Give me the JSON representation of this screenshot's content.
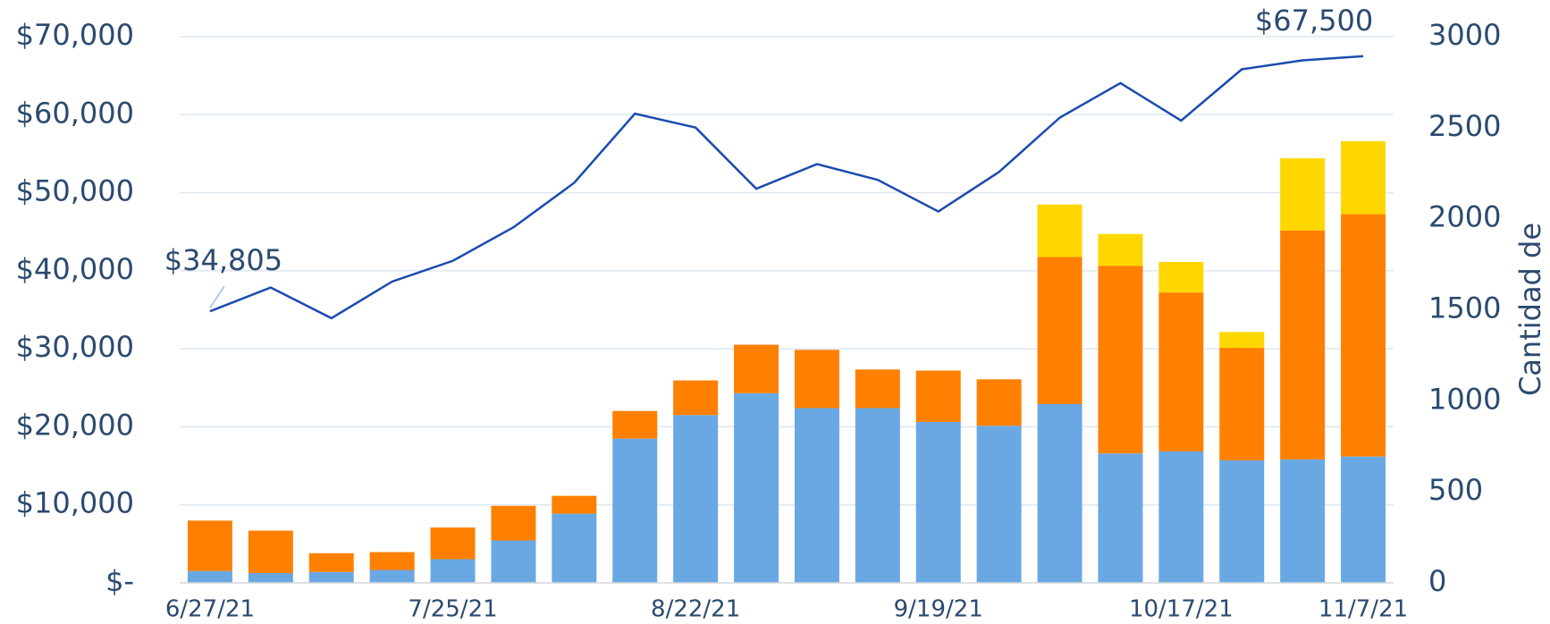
{
  "chart_data": {
    "type": "bar",
    "categories": [
      "6/27/21",
      null,
      null,
      null,
      "7/25/21",
      null,
      null,
      null,
      "8/22/21",
      null,
      null,
      null,
      "9/19/21",
      null,
      null,
      null,
      "10/17/21",
      null,
      null,
      "11/7/21"
    ],
    "series": [
      {
        "color": "#6aa8e3",
        "axis": "y2",
        "values": [
          65,
          54,
          60,
          71,
          130,
          233,
          380,
          792,
          922,
          1042,
          960,
          960,
          884,
          863,
          982,
          711,
          722,
          673,
          678,
          694
        ]
      },
      {
        "color": "#ff8000",
        "axis": "y2",
        "values": [
          277,
          233,
          103,
          98,
          174,
          190,
          98,
          152,
          190,
          266,
          320,
          212,
          282,
          255,
          808,
          1031,
          873,
          618,
          1258,
          1331
        ]
      },
      {
        "color": "#ffd700",
        "axis": "y2",
        "values": [
          0,
          0,
          0,
          0,
          0,
          0,
          0,
          0,
          0,
          0,
          0,
          0,
          0,
          0,
          288,
          174,
          168,
          87,
          396,
          401
        ]
      }
    ],
    "line": {
      "color": "#1a4bb0",
      "values": [
        34805,
        37850,
        33920,
        38610,
        41270,
        45570,
        51270,
        60130,
        58350,
        50510,
        53670,
        51650,
        47590,
        52660,
        59620,
        64050,
        59240,
        65820,
        66960,
        67500
      ],
      "value_labels": [
        "$34,805",
        null,
        null,
        null,
        null,
        null,
        null,
        null,
        null,
        null,
        null,
        null,
        null,
        null,
        null,
        null,
        null,
        null,
        null,
        "$67,500"
      ]
    },
    "ylim": [
      0,
      70000
    ],
    "yticks": [
      {
        "value": 0,
        "label": "$-"
      },
      {
        "value": 10000,
        "label": "$10,000"
      },
      {
        "value": 20000,
        "label": "$20,000"
      },
      {
        "value": 30000,
        "label": "$30,000"
      },
      {
        "value": 40000,
        "label": "$40,000"
      },
      {
        "value": 50000,
        "label": "$50,000"
      },
      {
        "value": 60000,
        "label": "$60,000"
      },
      {
        "value": 70000,
        "label": "$70,000"
      }
    ],
    "y2lim": [
      0,
      3000
    ],
    "y2ticks": [
      0,
      500,
      1000,
      1500,
      2000,
      2500,
      3000
    ],
    "y2label": "Cantidad de",
    "grid": true
  }
}
